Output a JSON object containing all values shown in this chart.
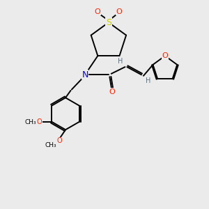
{
  "bg_color": "#ebebeb",
  "atom_colors": {
    "C": "#000000",
    "N": "#0000ee",
    "O": "#ff2200",
    "S": "#cccc00",
    "H": "#607080"
  },
  "bond_color": "#000000",
  "bond_width": 1.4,
  "fig_width": 3.0,
  "fig_height": 3.0,
  "dpi": 100
}
